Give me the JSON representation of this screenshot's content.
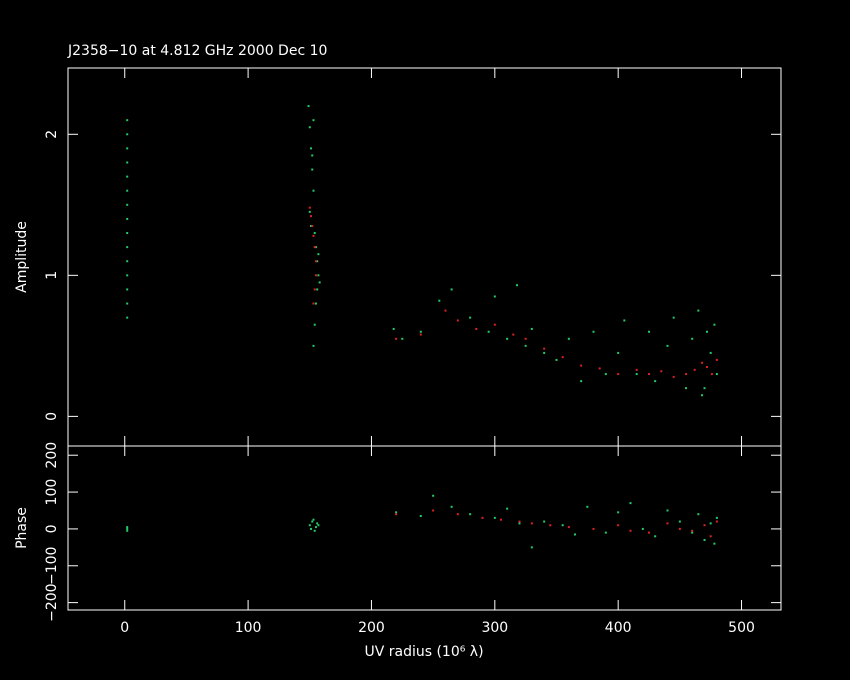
{
  "chart_data": [
    {
      "type": "scatter",
      "title": "J2358−10 at 4.812 GHz 2000 Dec 10",
      "y_label": "Amplitude",
      "xlim": [
        -46,
        532
      ],
      "xticks": [
        0,
        100,
        200,
        300,
        400,
        500
      ],
      "ylim": [
        -0.21,
        2.47
      ],
      "yticks": [
        0,
        1,
        2
      ],
      "series": [
        {
          "color": "#22cc66",
          "x": [
            2,
            2,
            2,
            2,
            2,
            2,
            2,
            2,
            2,
            2,
            2,
            2,
            2,
            2,
            2,
            149,
            150,
            151,
            152,
            153,
            150,
            154,
            155,
            156,
            157,
            156,
            155,
            154,
            153,
            152,
            151,
            157,
            158,
            153,
            218,
            225,
            240,
            255,
            265,
            280,
            295,
            300,
            310,
            318,
            325,
            330,
            340,
            350,
            360,
            370,
            380,
            390,
            400,
            405,
            415,
            425,
            430,
            440,
            445,
            455,
            460,
            465,
            470,
            475,
            478,
            480,
            472,
            468
          ],
          "values": [
            0.7,
            0.8,
            0.9,
            1.0,
            1.1,
            1.2,
            1.3,
            1.4,
            1.5,
            1.6,
            1.7,
            1.8,
            1.9,
            2.0,
            2.1,
            2.2,
            2.05,
            1.9,
            1.75,
            1.6,
            1.45,
            1.3,
            1.2,
            1.1,
            1.0,
            0.9,
            0.8,
            0.65,
            0.5,
            1.85,
            1.35,
            1.15,
            0.95,
            2.1,
            0.62,
            0.55,
            0.6,
            0.82,
            0.9,
            0.7,
            0.6,
            0.85,
            0.55,
            0.93,
            0.5,
            0.62,
            0.45,
            0.4,
            0.55,
            0.25,
            0.6,
            0.3,
            0.45,
            0.68,
            0.3,
            0.6,
            0.25,
            0.5,
            0.7,
            0.2,
            0.55,
            0.75,
            0.2,
            0.45,
            0.65,
            0.3,
            0.6,
            0.15
          ]
        },
        {
          "color": "#dd2222",
          "x": [
            150,
            151,
            152,
            153,
            154,
            155,
            155,
            154,
            153,
            220,
            240,
            260,
            270,
            285,
            300,
            315,
            325,
            340,
            355,
            370,
            385,
            400,
            415,
            425,
            435,
            445,
            455,
            462,
            468,
            472,
            476,
            480
          ],
          "values": [
            1.48,
            1.42,
            1.35,
            1.28,
            1.2,
            1.1,
            1.0,
            0.9,
            0.8,
            0.55,
            0.58,
            0.75,
            0.68,
            0.62,
            0.65,
            0.58,
            0.55,
            0.48,
            0.42,
            0.36,
            0.34,
            0.3,
            0.33,
            0.3,
            0.32,
            0.28,
            0.3,
            0.33,
            0.38,
            0.35,
            0.3,
            0.4
          ]
        }
      ]
    },
    {
      "type": "scatter",
      "y_label": "Phase",
      "x_label": "UV radius  (10⁶ λ)",
      "xlim": [
        -46,
        532
      ],
      "xticks": [
        0,
        100,
        200,
        300,
        400,
        500
      ],
      "ylim": [
        -220,
        225
      ],
      "yticks": [
        {
          "value": -200,
          "label": "−200"
        },
        {
          "value": -100,
          "label": "−100"
        },
        0,
        100,
        200
      ],
      "series": [
        {
          "color": "#22cc66",
          "x": [
            2,
            2,
            2,
            150,
            152,
            154,
            156,
            151,
            153,
            155,
            157,
            220,
            240,
            250,
            265,
            280,
            300,
            310,
            320,
            330,
            340,
            355,
            365,
            375,
            390,
            400,
            410,
            420,
            430,
            440,
            450,
            460,
            465,
            470,
            475,
            478,
            480
          ],
          "values": [
            5,
            0,
            -5,
            10,
            20,
            -5,
            15,
            0,
            25,
            5,
            10,
            45,
            35,
            90,
            60,
            40,
            30,
            55,
            15,
            -50,
            20,
            10,
            -15,
            60,
            -10,
            45,
            70,
            0,
            -20,
            50,
            20,
            -10,
            40,
            -30,
            15,
            -40,
            30
          ]
        },
        {
          "color": "#dd2222",
          "x": [
            220,
            250,
            270,
            290,
            305,
            320,
            330,
            345,
            360,
            380,
            400,
            410,
            425,
            440,
            450,
            460,
            470,
            475,
            480
          ],
          "values": [
            40,
            50,
            40,
            30,
            25,
            20,
            15,
            10,
            5,
            0,
            10,
            -5,
            -10,
            15,
            0,
            -5,
            10,
            -20,
            20
          ]
        }
      ]
    }
  ]
}
